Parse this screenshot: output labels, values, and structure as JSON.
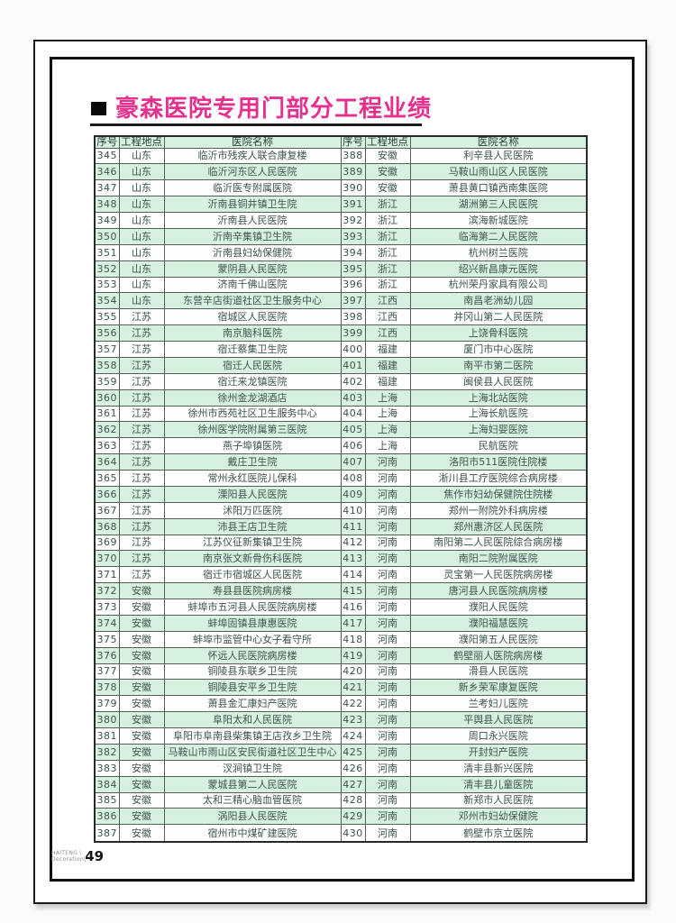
{
  "title": {
    "text": "豪森医院专用门部分工程业绩"
  },
  "footer": {
    "brand_line1": "HAITENG \\",
    "brand_line2": "Decoration\\",
    "page_number": "49"
  },
  "colors": {
    "title_pink": "#e5308e",
    "row_green": "#d7f1e0",
    "frame_black": "#101010"
  },
  "table": {
    "headers": [
      "序号",
      "工程地点",
      "医院名称"
    ],
    "left_rows": [
      {
        "no": "345",
        "loc": "山东",
        "name": "临沂市残疾人联合康复楼"
      },
      {
        "no": "346",
        "loc": "山东",
        "name": "临沂河东区人民医院"
      },
      {
        "no": "347",
        "loc": "山东",
        "name": "临沂医专附属医院"
      },
      {
        "no": "348",
        "loc": "山东",
        "name": "沂南县铜井镇卫生院"
      },
      {
        "no": "349",
        "loc": "山东",
        "name": "沂南县人民医院"
      },
      {
        "no": "350",
        "loc": "山东",
        "name": "沂南辛集镇卫生院"
      },
      {
        "no": "351",
        "loc": "山东",
        "name": "沂南县妇幼保健院"
      },
      {
        "no": "352",
        "loc": "山东",
        "name": "蒙阴县人民医院"
      },
      {
        "no": "353",
        "loc": "山东",
        "name": "济南千佛山医院"
      },
      {
        "no": "354",
        "loc": "山东",
        "name": "东营辛店街道社区卫生服务中心"
      },
      {
        "no": "355",
        "loc": "江苏",
        "name": "宿城区人民医院"
      },
      {
        "no": "356",
        "loc": "江苏",
        "name": "南京脑科医院"
      },
      {
        "no": "357",
        "loc": "江苏",
        "name": "宿迁蔡集卫生院"
      },
      {
        "no": "358",
        "loc": "江苏",
        "name": "宿迁人民医院"
      },
      {
        "no": "359",
        "loc": "江苏",
        "name": "宿迁来龙镇医院"
      },
      {
        "no": "360",
        "loc": "江苏",
        "name": "徐州金龙湖酒店"
      },
      {
        "no": "361",
        "loc": "江苏",
        "name": "徐州市西苑社区卫生服务中心"
      },
      {
        "no": "362",
        "loc": "江苏",
        "name": "徐州医学院附属第三医院"
      },
      {
        "no": "363",
        "loc": "江苏",
        "name": "燕子埠镇医院"
      },
      {
        "no": "364",
        "loc": "江苏",
        "name": "戴庄卫生院"
      },
      {
        "no": "365",
        "loc": "江苏",
        "name": "常州永红医院儿保科"
      },
      {
        "no": "366",
        "loc": "江苏",
        "name": "溧阳县人民医院"
      },
      {
        "no": "367",
        "loc": "江苏",
        "name": "沭阳万匹医院"
      },
      {
        "no": "368",
        "loc": "江苏",
        "name": "沛县王店卫生院"
      },
      {
        "no": "369",
        "loc": "江苏",
        "name": "江苏仪征新集镇卫生院"
      },
      {
        "no": "370",
        "loc": "江苏",
        "name": "南京张文新骨伤科医院"
      },
      {
        "no": "371",
        "loc": "江苏",
        "name": "宿迁市宿城区人民医院"
      },
      {
        "no": "372",
        "loc": "安徽",
        "name": "寿县县医院病房楼"
      },
      {
        "no": "373",
        "loc": "安徽",
        "name": "蚌埠市五河县人民医院病房楼"
      },
      {
        "no": "374",
        "loc": "安徽",
        "name": "蚌埠固镇县康惠医院"
      },
      {
        "no": "375",
        "loc": "安徽",
        "name": "蚌埠市监管中心女子看守所"
      },
      {
        "no": "376",
        "loc": "安徽",
        "name": "怀远人民医院病房楼"
      },
      {
        "no": "377",
        "loc": "安徽",
        "name": "铜陵县东联乡卫生院"
      },
      {
        "no": "378",
        "loc": "安徽",
        "name": "铜陵县安平乡卫生院"
      },
      {
        "no": "379",
        "loc": "安徽",
        "name": "萧县金汇康妇产医院"
      },
      {
        "no": "380",
        "loc": "安徽",
        "name": "阜阳太和人民医院"
      },
      {
        "no": "381",
        "loc": "安徽",
        "name": "阜阳市阜南县柴集镇王店孜乡卫生院"
      },
      {
        "no": "382",
        "loc": "安徽",
        "name": "马鞍山市雨山区安民街道社区卫生中心"
      },
      {
        "no": "383",
        "loc": "安徽",
        "name": "汊涧镇卫生院"
      },
      {
        "no": "384",
        "loc": "安徽",
        "name": "蒙城县第二人民医院"
      },
      {
        "no": "385",
        "loc": "安徽",
        "name": "太和三精心脑血管医院"
      },
      {
        "no": "386",
        "loc": "安徽",
        "name": "涡阳县人民医院"
      },
      {
        "no": "387",
        "loc": "安徽",
        "name": "宿州市中煤矿建医院"
      }
    ],
    "right_rows": [
      {
        "no": "388",
        "loc": "安徽",
        "name": "利辛县人民医院"
      },
      {
        "no": "389",
        "loc": "安徽",
        "name": "马鞍山雨山区人民医院"
      },
      {
        "no": "390",
        "loc": "安徽",
        "name": "萧县黄口镇西南集医院"
      },
      {
        "no": "391",
        "loc": "浙江",
        "name": "湖洲第三人民医院"
      },
      {
        "no": "392",
        "loc": "浙江",
        "name": "滨海新城医院"
      },
      {
        "no": "393",
        "loc": "浙江",
        "name": "临海第二人民医院"
      },
      {
        "no": "394",
        "loc": "浙江",
        "name": "杭州树兰医院"
      },
      {
        "no": "395",
        "loc": "浙江",
        "name": "绍兴新昌康元医院"
      },
      {
        "no": "396",
        "loc": "浙江",
        "name": "杭州荣丹家具有限公司"
      },
      {
        "no": "397",
        "loc": "江西",
        "name": "南昌老洲幼儿园"
      },
      {
        "no": "398",
        "loc": "江西",
        "name": "井冈山第二人民医院"
      },
      {
        "no": "399",
        "loc": "江西",
        "name": "上饶骨科医院"
      },
      {
        "no": "400",
        "loc": "福建",
        "name": "厦门市中心医院"
      },
      {
        "no": "401",
        "loc": "福建",
        "name": "南平市第二医院"
      },
      {
        "no": "402",
        "loc": "福建",
        "name": "闽侯县人民医院"
      },
      {
        "no": "403",
        "loc": "上海",
        "name": "上海北站医院"
      },
      {
        "no": "404",
        "loc": "上海",
        "name": "上海长航医院"
      },
      {
        "no": "405",
        "loc": "上海",
        "name": "上海妇婴医院"
      },
      {
        "no": "406",
        "loc": "上海",
        "name": "民航医院"
      },
      {
        "no": "407",
        "loc": "河南",
        "name": "洛阳市511医院住院楼"
      },
      {
        "no": "408",
        "loc": "河南",
        "name": "淅川县工疗医院综合病房楼"
      },
      {
        "no": "409",
        "loc": "河南",
        "name": "焦作市妇幼保健院住院楼"
      },
      {
        "no": "410",
        "loc": "河南",
        "name": "郑州一附院外科病房楼"
      },
      {
        "no": "411",
        "loc": "河南",
        "name": "郑州惠济区人民医院"
      },
      {
        "no": "412",
        "loc": "河南",
        "name": "南阳第二人民医院综合病房楼"
      },
      {
        "no": "413",
        "loc": "河南",
        "name": "南阳二院附属医院"
      },
      {
        "no": "414",
        "loc": "河南",
        "name": "灵宝第一人民医院病房楼"
      },
      {
        "no": "415",
        "loc": "河南",
        "name": "唐河县人民医院病房楼"
      },
      {
        "no": "416",
        "loc": "河南",
        "name": "濮阳人民医院"
      },
      {
        "no": "417",
        "loc": "河南",
        "name": "濮阳福慧医院"
      },
      {
        "no": "418",
        "loc": "河南",
        "name": "濮阳第五人民医院"
      },
      {
        "no": "419",
        "loc": "河南",
        "name": "鹤壁丽人医院病房楼"
      },
      {
        "no": "420",
        "loc": "河南",
        "name": "滑县人民医院"
      },
      {
        "no": "421",
        "loc": "河南",
        "name": "新乡荣军康复医院"
      },
      {
        "no": "422",
        "loc": "河南",
        "name": "兰考妇儿医院"
      },
      {
        "no": "423",
        "loc": "河南",
        "name": "平舆县人民医院"
      },
      {
        "no": "424",
        "loc": "河南",
        "name": "周口永兴医院"
      },
      {
        "no": "425",
        "loc": "河南",
        "name": "开封妇产医院"
      },
      {
        "no": "426",
        "loc": "河南",
        "name": "清丰县新兴医院"
      },
      {
        "no": "427",
        "loc": "河南",
        "name": "清丰县儿童医院"
      },
      {
        "no": "428",
        "loc": "河南",
        "name": "新郑市人民医院"
      },
      {
        "no": "429",
        "loc": "河南",
        "name": "邓州市妇幼保健院"
      },
      {
        "no": "430",
        "loc": "河南",
        "name": "鹤壁市京立医院"
      }
    ]
  }
}
